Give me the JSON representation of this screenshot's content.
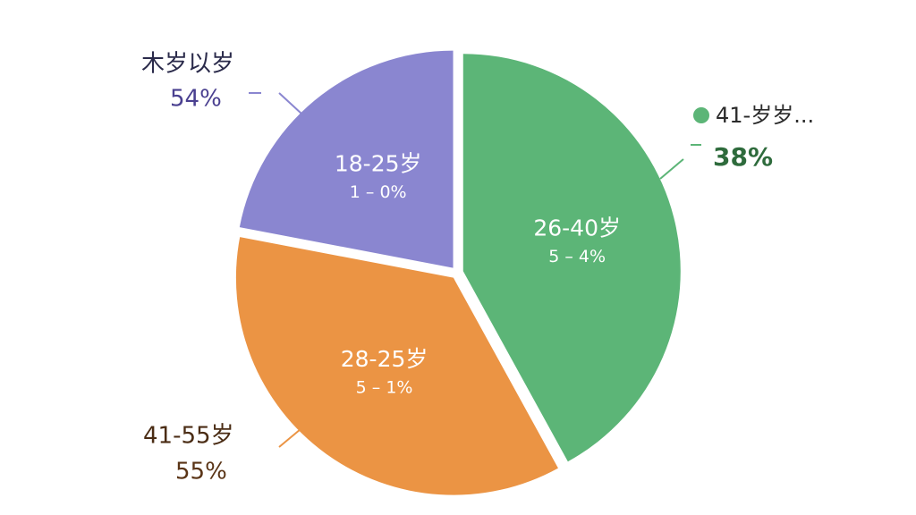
{
  "chart_data": {
    "type": "pie",
    "categories": [
      "26-40岁",
      "28-25岁",
      "18-25岁"
    ],
    "values": [
      42,
      36,
      22
    ],
    "colors": [
      "#5cb577",
      "#eb9444",
      "#8a86d0"
    ],
    "inner_labels": [
      "5 – 4%",
      "5 – 1%",
      "1 – 0%"
    ],
    "annotations": [
      {
        "text": "41-岁岁...",
        "sub": "38%"
      },
      {
        "text": "41-55岁",
        "sub": "55%"
      },
      {
        "text": "木岁以岁",
        "sub": "54%"
      }
    ]
  }
}
